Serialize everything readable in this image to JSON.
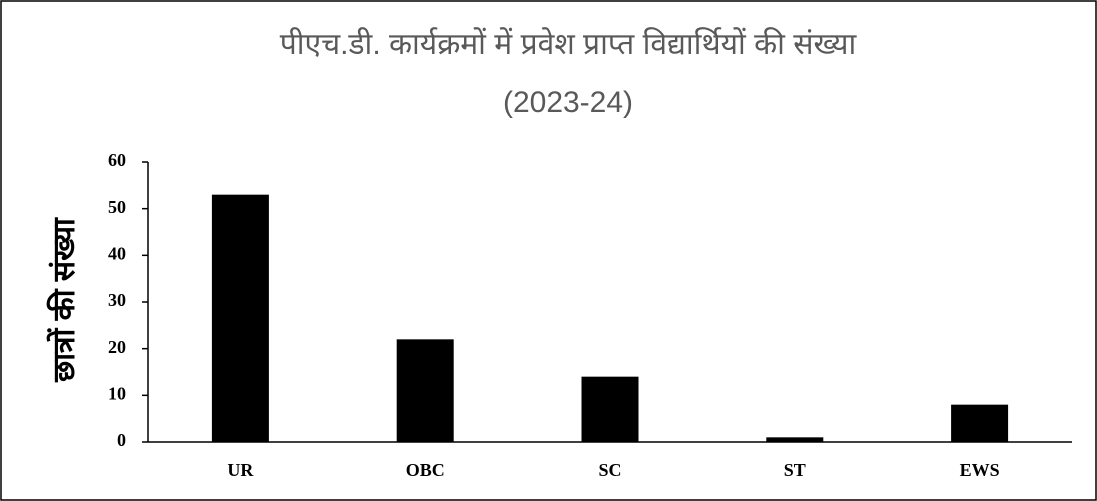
{
  "chart_data": {
    "type": "bar",
    "title": "पीएच.डी. कार्यक्रमों में प्रवेश प्राप्त विद्यार्थियों की संख्या",
    "subtitle": "(2023-24)",
    "y_label": "छात्रों की संख्या",
    "categories": [
      "UR",
      "OBC",
      "SC",
      "ST",
      "EWS"
    ],
    "values": [
      53,
      22,
      14,
      1,
      8
    ],
    "color": "#000000",
    "ylim": [
      0,
      60
    ],
    "yticks": [
      0,
      10,
      20,
      30,
      40,
      50,
      60
    ],
    "grid": false
  }
}
